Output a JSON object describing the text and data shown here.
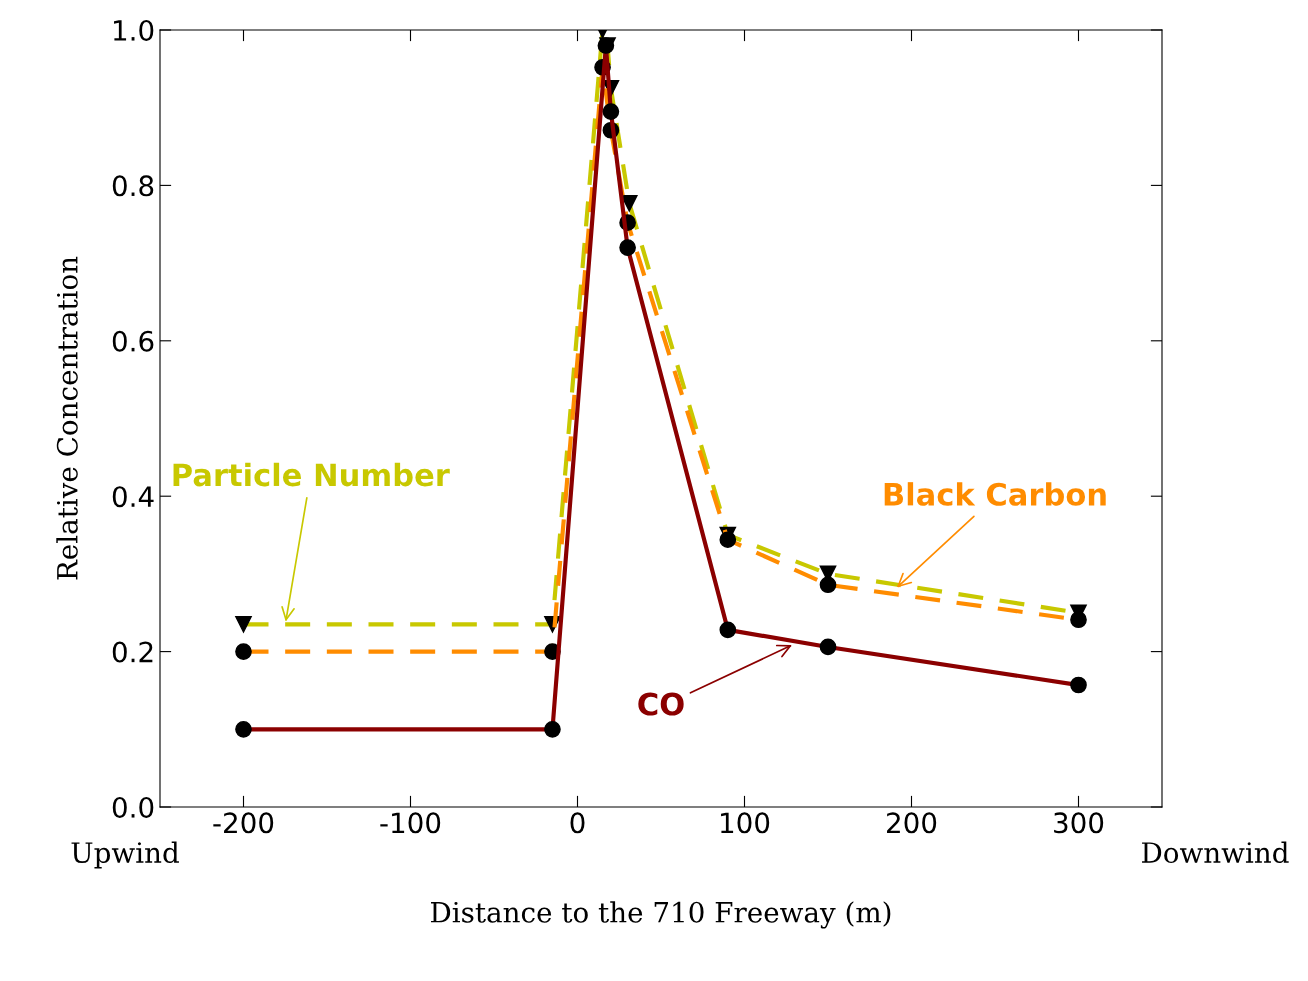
{
  "chart_data": {
    "type": "line",
    "xlabel": "Distance to the 710 Freeway (m)",
    "ylabel": "Relative Concentration",
    "xlim": [
      -250,
      350
    ],
    "xticks": [
      -200,
      -100,
      0,
      100,
      200,
      300
    ],
    "ylim": [
      0,
      1
    ],
    "yticks": [
      {
        "value": 0,
        "label": "0.0"
      },
      {
        "value": 0.2,
        "label": "0.2"
      },
      {
        "value": 0.4,
        "label": "0.4"
      },
      {
        "value": 0.6,
        "label": "0.6"
      },
      {
        "value": 0.8,
        "label": "0.8"
      },
      {
        "value": 1.0,
        "label": "1.0"
      }
    ],
    "grid": false,
    "legend": false,
    "series": [
      {
        "x": [
          -200,
          -15,
          15,
          18,
          20,
          31,
          90,
          150,
          300
        ],
        "values": [
          0.235,
          0.235,
          1.0,
          0.98,
          0.925,
          0.777,
          0.35,
          0.3,
          0.25
        ],
        "color": "#c8c800",
        "line_style": "dashed",
        "marker": "triangle"
      },
      {
        "x": [
          -200,
          -15,
          15,
          20,
          30,
          90,
          150,
          300
        ],
        "values": [
          0.2,
          0.2,
          0.952,
          0.871,
          0.752,
          0.344,
          0.286,
          0.241
        ],
        "color": "#ff8c00",
        "line_style": "dashed",
        "marker": "circle"
      },
      {
        "x": [
          -200,
          -15,
          17,
          20,
          30,
          90,
          150,
          300
        ],
        "values": [
          0.1,
          0.1,
          0.98,
          0.895,
          0.72,
          0.228,
          0.206,
          0.157
        ],
        "color": "#8b0000",
        "line_style": "solid",
        "marker": "circle"
      }
    ],
    "annotations": [
      {
        "text": "Particle Number",
        "x": -175,
        "y": 0.235
      },
      {
        "text": "Black Carbon",
        "x": 190,
        "y": 0.28
      },
      {
        "text": "CO",
        "x": 130,
        "y": 0.21
      },
      "Upwind",
      "Downwind"
    ]
  }
}
